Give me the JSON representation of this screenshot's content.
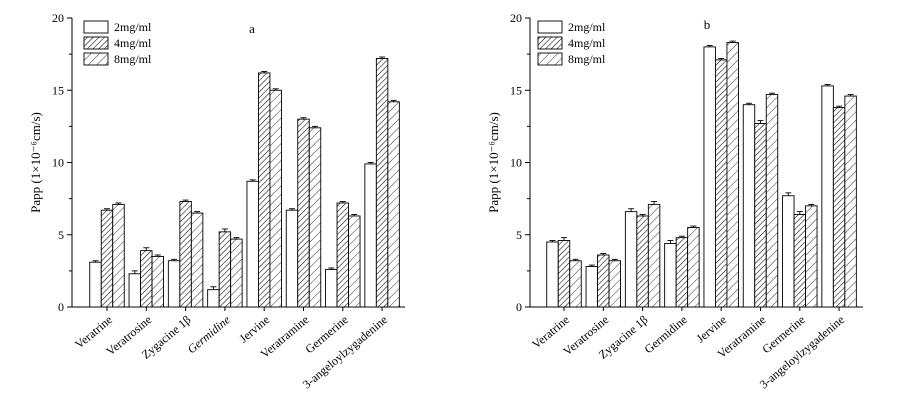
{
  "chart_data": [
    {
      "type": "bar",
      "panel_label": "a",
      "ylabel": "Papp (1×10⁻⁶cm/s)",
      "ylim": [
        0,
        20
      ],
      "yticks": [
        "0",
        "5",
        "10",
        "15",
        "20"
      ],
      "legend_position": "top-left",
      "categories": [
        "Veratrine",
        "Veratrosine",
        "Zygacine 1β",
        "Germidine",
        "Jervine",
        "Veratramine",
        "Germerine",
        "3-angeloylzygadenine"
      ],
      "category_italic": [
        false,
        false,
        false,
        true,
        false,
        false,
        false,
        false
      ],
      "series": [
        {
          "name": "2mg/ml",
          "pattern": "none",
          "values": [
            3.1,
            2.3,
            3.2,
            1.2,
            8.7,
            6.7,
            2.6,
            9.9
          ],
          "errors": [
            0.1,
            0.2,
            0.1,
            0.2,
            0.1,
            0.1,
            0.1,
            0.1
          ]
        },
        {
          "name": "4mg/ml",
          "pattern": "hatch-dense",
          "values": [
            6.7,
            3.9,
            7.3,
            5.2,
            16.2,
            13.0,
            7.2,
            17.2
          ],
          "errors": [
            0.1,
            0.2,
            0.1,
            0.2,
            0.1,
            0.1,
            0.1,
            0.1
          ]
        },
        {
          "name": "8mg/ml",
          "pattern": "hatch-sparse",
          "values": [
            7.1,
            3.5,
            6.5,
            4.7,
            15.0,
            12.4,
            6.3,
            14.2
          ],
          "errors": [
            0.1,
            0.1,
            0.1,
            0.1,
            0.1,
            0.1,
            0.1,
            0.1
          ]
        }
      ]
    },
    {
      "type": "bar",
      "panel_label": "b",
      "ylabel": "Papp (1×10⁻⁶cm/s)",
      "ylim": [
        0,
        20
      ],
      "yticks": [
        "0",
        "5",
        "10",
        "15",
        "20"
      ],
      "legend_position": "top-left",
      "categories": [
        "Veratrine",
        "Veratrosine",
        "Zygacine 1β",
        "Germidine",
        "Jervine",
        "Veratramine",
        "Germerine",
        "3-angeloylzygadenine"
      ],
      "category_italic": [
        false,
        false,
        false,
        false,
        false,
        false,
        false,
        false
      ],
      "series": [
        {
          "name": "2mg/ml",
          "pattern": "none",
          "values": [
            4.5,
            2.8,
            6.6,
            4.4,
            18.0,
            14.0,
            7.7,
            15.3
          ],
          "errors": [
            0.1,
            0.1,
            0.2,
            0.2,
            0.1,
            0.1,
            0.2,
            0.1
          ]
        },
        {
          "name": "4mg/ml",
          "pattern": "hatch-dense",
          "values": [
            4.6,
            3.6,
            6.3,
            4.8,
            17.1,
            12.7,
            6.4,
            13.8
          ],
          "errors": [
            0.2,
            0.1,
            0.1,
            0.1,
            0.1,
            0.2,
            0.2,
            0.1
          ]
        },
        {
          "name": "8mg/ml",
          "pattern": "hatch-sparse",
          "values": [
            3.2,
            3.2,
            7.1,
            5.5,
            18.3,
            14.7,
            7.0,
            14.6
          ],
          "errors": [
            0.1,
            0.1,
            0.2,
            0.1,
            0.1,
            0.1,
            0.1,
            0.1
          ]
        }
      ]
    }
  ]
}
